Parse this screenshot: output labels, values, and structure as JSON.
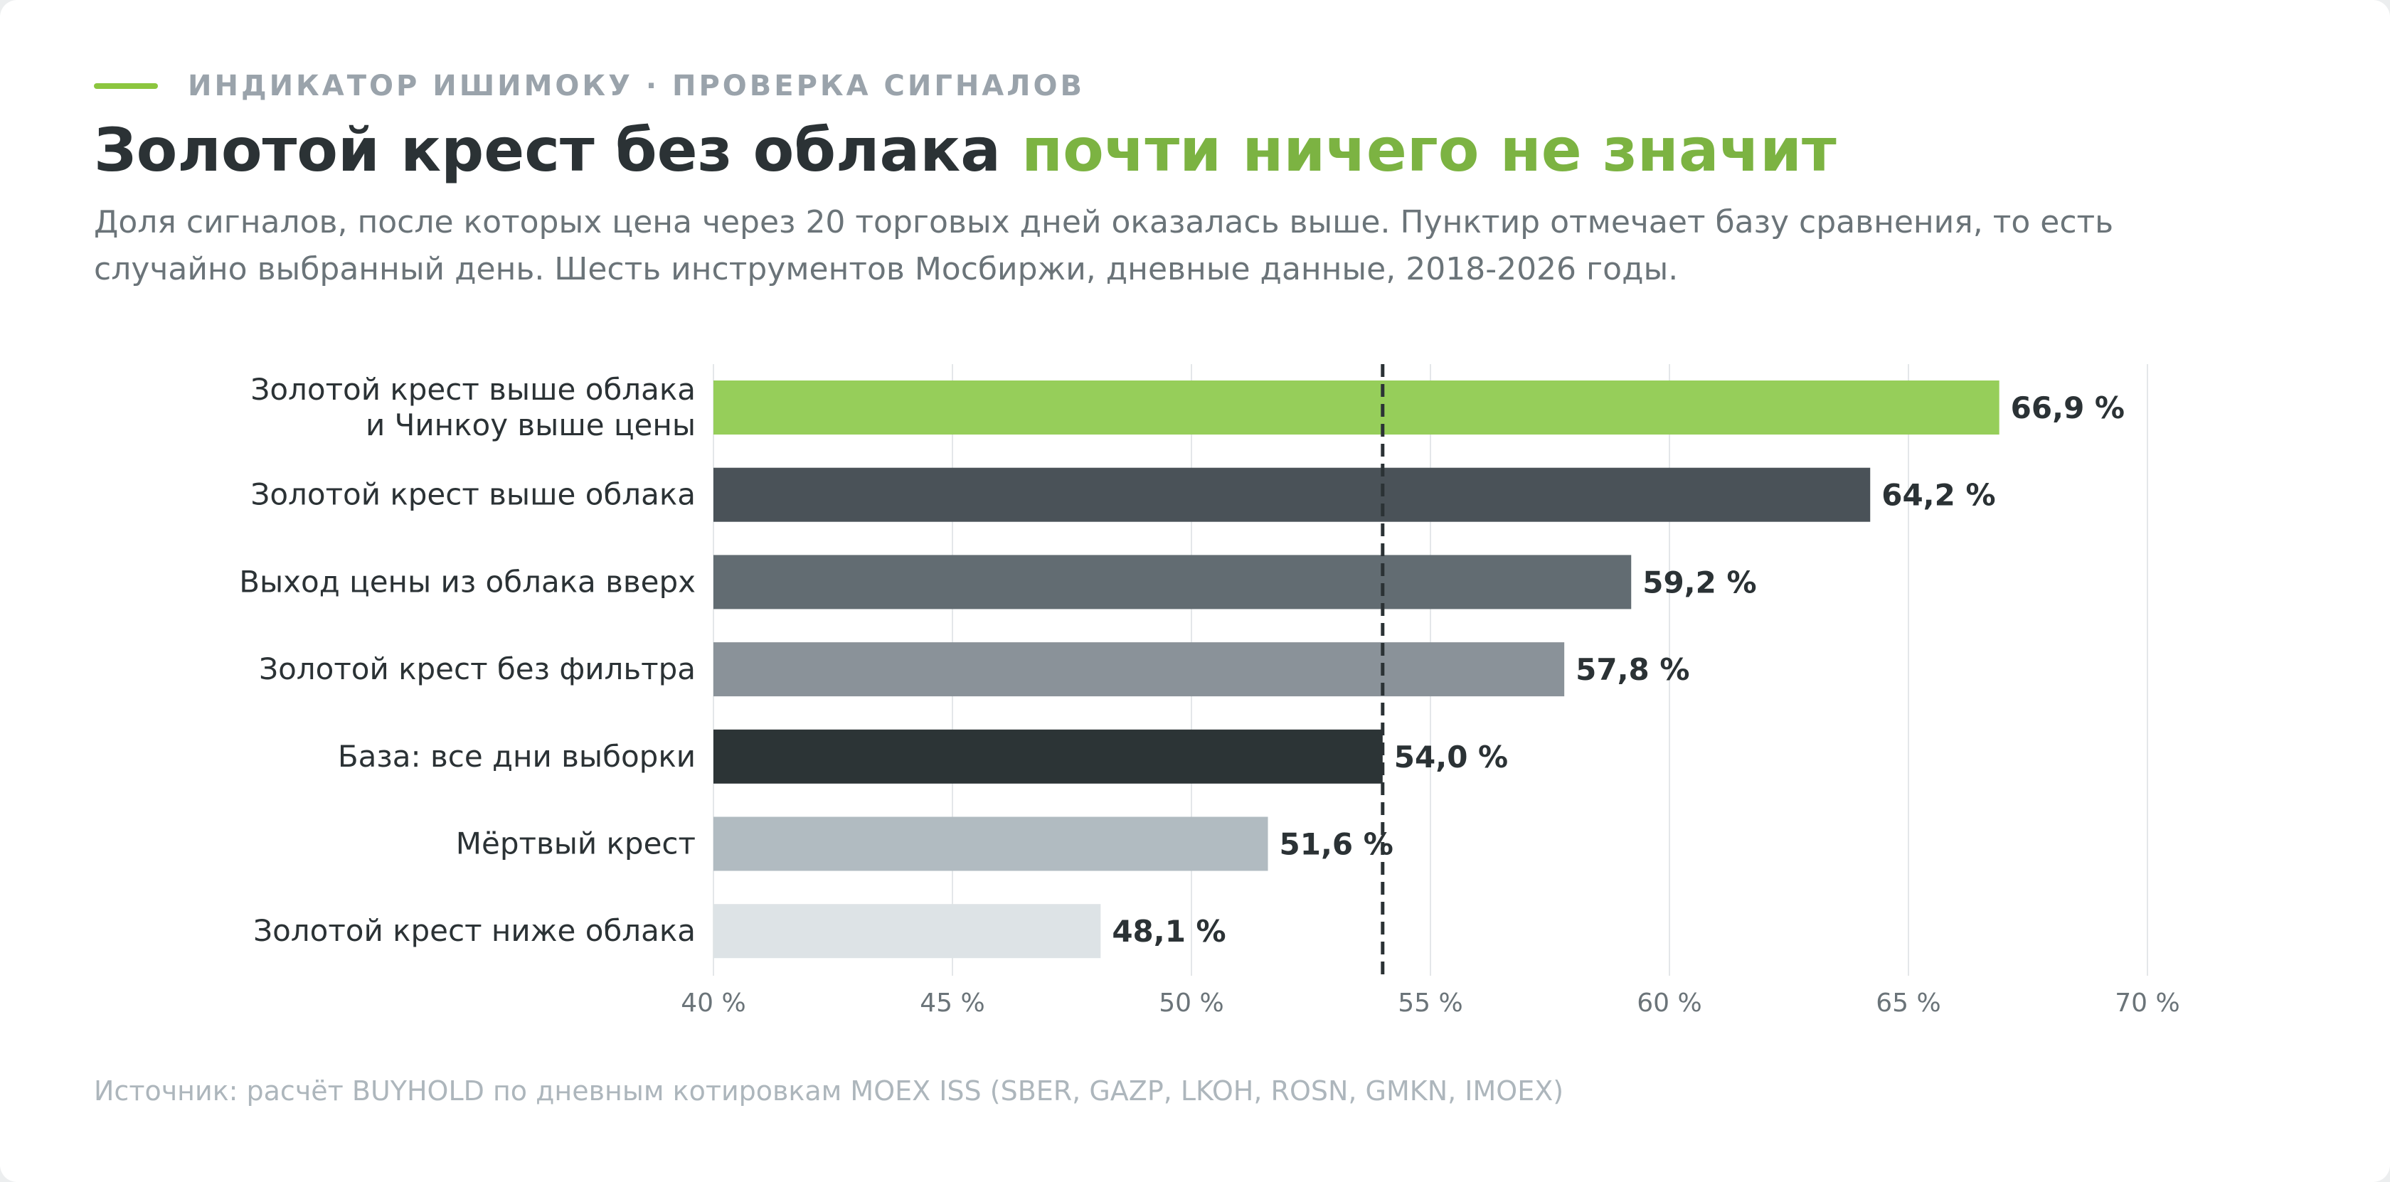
{
  "header": {
    "kicker": "ИНДИКАТОР ИШИМОКУ · ПРОВЕРКА СИГНАЛОВ",
    "title_main": "Золотой крест без облака",
    "title_accent": "почти ничего не значит",
    "subtitle_line1": "Доля сигналов, после которых цена через 20 торговых дней оказалась выше. Пунктир отмечает базу сравнения, то есть",
    "subtitle_line2": "случайно выбранный день. Шесть инструментов Мосбиржи, дневные данные, 2018-2026 годы."
  },
  "colors": {
    "accent": "#8cc63f",
    "accent_text": "#7cb342",
    "text_dark": "#2b3235",
    "grid": "#e4e7e9",
    "baseline": "#2b3235"
  },
  "chart_data": {
    "type": "bar",
    "orientation": "horizontal",
    "categories": [
      [
        "Золотой крест выше облака",
        "и Чинкоу выше цены"
      ],
      [
        "Золотой крест выше облака"
      ],
      [
        "Выход цены из облака вверх"
      ],
      [
        "Золотой крест без фильтра"
      ],
      [
        "База: все дни выборки"
      ],
      [
        "Мёртвый крест"
      ],
      [
        "Золотой крест ниже облака"
      ]
    ],
    "values": [
      66.9,
      64.2,
      59.2,
      57.8,
      54.0,
      51.6,
      48.1
    ],
    "value_labels": [
      "66,9 %",
      "64,2 %",
      "59,2 %",
      "57,8 %",
      "54,0 %",
      "51,6 %",
      "48,1 %"
    ],
    "bar_colors": [
      "#96ce5a",
      "#4a5258",
      "#626c72",
      "#8a9299",
      "#2c3436",
      "#b1bbc1",
      "#dde3e6"
    ],
    "xlim": [
      40,
      70
    ],
    "xticks": [
      40,
      45,
      50,
      55,
      60,
      65,
      70
    ],
    "xtick_labels": [
      "40 %",
      "45 %",
      "50 %",
      "55 %",
      "60 %",
      "65 %",
      "70 %"
    ],
    "baseline_value": 54.0,
    "grid": true
  },
  "footer": {
    "source": "Источник: расчёт BUYHOLD по дневным котировкам MOEX ISS (SBER, GAZP, LKOH, ROSN, GMKN, IMOEX)"
  }
}
